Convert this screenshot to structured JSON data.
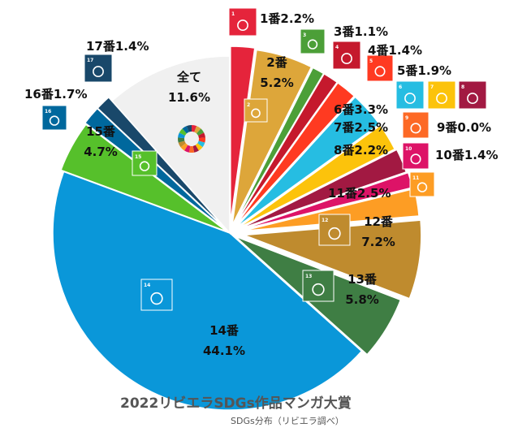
{
  "chart_data": {
    "type": "pie",
    "title": "2022リビエラSDGs作品マンガ大賞",
    "subtitle": "SDGs分布（リビエラ調べ）",
    "start": "12 o'clock, clockwise",
    "slices": [
      {
        "id": "g1",
        "label": "1番",
        "value": 2.2,
        "display": "1番2.2%",
        "color": "#e5243b"
      },
      {
        "id": "g2",
        "label": "2番",
        "value": 5.2,
        "display": "5.2%",
        "color": "#dda63a"
      },
      {
        "id": "g3",
        "label": "3番",
        "value": 1.1,
        "display": "3番1.1%",
        "color": "#4c9f38"
      },
      {
        "id": "g4",
        "label": "4番",
        "value": 1.4,
        "display": "4番1.4%",
        "color": "#c5192d"
      },
      {
        "id": "g5",
        "label": "5番",
        "value": 1.9,
        "display": "5番1.9%",
        "color": "#ff3a21"
      },
      {
        "id": "g6",
        "label": "6番",
        "value": 3.3,
        "display": "6番3.3%",
        "color": "#26bde2"
      },
      {
        "id": "g7",
        "label": "7番",
        "value": 2.5,
        "display": "7番2.5%",
        "color": "#fcc30b"
      },
      {
        "id": "g8",
        "label": "8番",
        "value": 2.2,
        "display": "8番2.2%",
        "color": "#a21942"
      },
      {
        "id": "g9",
        "label": "9番",
        "value": 0.0,
        "display": "9番0.0%",
        "color": "#fd6925"
      },
      {
        "id": "g10",
        "label": "10番",
        "value": 1.4,
        "display": "10番1.4%",
        "color": "#dd1367"
      },
      {
        "id": "g11",
        "label": "11番",
        "value": 2.5,
        "display": "11番2.5%",
        "color": "#fd9d24"
      },
      {
        "id": "g12",
        "label": "12番",
        "value": 7.2,
        "display": "7.2%",
        "color": "#bf8b2e"
      },
      {
        "id": "g13",
        "label": "13番",
        "value": 5.8,
        "display": "5.8%",
        "color": "#3f7e44"
      },
      {
        "id": "g14",
        "label": "14番",
        "value": 44.1,
        "display": "44.1%",
        "color": "#0a97d9"
      },
      {
        "id": "g15",
        "label": "15番",
        "value": 4.7,
        "display": "4.7%",
        "color": "#56c02b"
      },
      {
        "id": "g16",
        "label": "16番",
        "value": 1.7,
        "display": "16番1.7%",
        "color": "#00689d"
      },
      {
        "id": "g17",
        "label": "17番",
        "value": 1.4,
        "display": "17番1.4%",
        "color": "#19486a"
      },
      {
        "id": "all",
        "label": "全て",
        "value": 11.6,
        "display": "11.6%",
        "color": "#f0f0f0"
      }
    ],
    "icons": [
      {
        "num": "1",
        "color": "#e5243b"
      },
      {
        "num": "2",
        "color": "#dda63a"
      },
      {
        "num": "3",
        "color": "#4c9f38"
      },
      {
        "num": "4",
        "color": "#c5192d"
      },
      {
        "num": "5",
        "color": "#ff3a21"
      },
      {
        "num": "6",
        "color": "#26bde2"
      },
      {
        "num": "7",
        "color": "#fcc30b"
      },
      {
        "num": "8",
        "color": "#a21942"
      },
      {
        "num": "9",
        "color": "#fd6925"
      },
      {
        "num": "10",
        "color": "#dd1367"
      },
      {
        "num": "11",
        "color": "#fd9d24"
      },
      {
        "num": "12",
        "color": "#bf8b2e"
      },
      {
        "num": "13",
        "color": "#3f7e44"
      },
      {
        "num": "14",
        "color": "#0a97d9"
      },
      {
        "num": "15",
        "color": "#56c02b"
      },
      {
        "num": "16",
        "color": "#00689d"
      },
      {
        "num": "17",
        "color": "#19486a"
      }
    ]
  }
}
